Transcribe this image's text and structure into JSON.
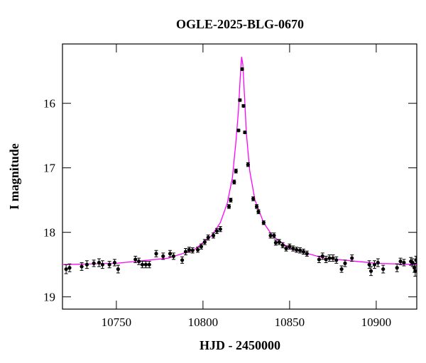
{
  "chart_data": {
    "type": "scatter",
    "title": "OGLE-2025-BLG-0670",
    "x_label": "HJD - 2450000",
    "y_label": "I magnitude",
    "xlim": [
      10718.9,
      10923.4
    ],
    "ylim": [
      19.19,
      15.08
    ],
    "xticks": [
      10750,
      10800,
      10850,
      10900
    ],
    "yticks": [
      16,
      17,
      18,
      19
    ],
    "series": [
      {
        "type": "scatter",
        "color": "#000000",
        "x": [
          10721,
          10723,
          10730,
          10733,
          10737,
          10740,
          10742,
          10746,
          10749,
          10751,
          10761,
          10763,
          10765,
          10767,
          10769,
          10773,
          10777,
          10781,
          10783,
          10788,
          10790,
          10792,
          10794,
          10797,
          10799,
          10801,
          10803,
          10806,
          10808,
          10810,
          10815,
          10816,
          10818,
          10819,
          10820.5,
          10821.3,
          10822.6,
          10823.4,
          10824.2,
          10826,
          10829,
          10831,
          10832,
          10835,
          10839,
          10841,
          10842,
          10844,
          10846,
          10848,
          10850,
          10852,
          10854,
          10856,
          10858,
          10860,
          10867,
          10869,
          10871,
          10873,
          10875,
          10877,
          10880,
          10882,
          10886,
          10896,
          10897,
          10899,
          10901,
          10904,
          10912,
          10914,
          10916,
          10920,
          10921,
          10922,
          10922.5,
          10923
        ],
        "values": [
          18.57,
          18.55,
          18.53,
          18.5,
          18.48,
          18.47,
          18.5,
          18.5,
          18.47,
          18.57,
          18.42,
          18.45,
          18.5,
          18.5,
          18.5,
          18.33,
          18.37,
          18.33,
          18.37,
          18.43,
          18.3,
          18.27,
          18.28,
          18.27,
          18.22,
          18.15,
          18.08,
          18.05,
          17.98,
          17.95,
          17.6,
          17.5,
          17.22,
          17.05,
          16.42,
          15.95,
          15.47,
          16.04,
          16.45,
          16.95,
          17.48,
          17.6,
          17.68,
          17.85,
          18.05,
          18.05,
          18.16,
          18.15,
          18.2,
          18.25,
          18.22,
          18.25,
          18.27,
          18.28,
          18.3,
          18.33,
          18.42,
          18.37,
          18.42,
          18.4,
          18.4,
          18.43,
          18.57,
          18.48,
          18.4,
          18.5,
          18.6,
          18.5,
          18.47,
          18.57,
          18.55,
          18.45,
          18.47,
          18.45,
          18.47,
          18.55,
          18.6,
          18.43
        ],
        "errors": [
          0.07,
          0.06,
          0.06,
          0.06,
          0.05,
          0.06,
          0.06,
          0.05,
          0.05,
          0.06,
          0.05,
          0.05,
          0.05,
          0.05,
          0.05,
          0.05,
          0.05,
          0.05,
          0.05,
          0.05,
          0.05,
          0.04,
          0.04,
          0.04,
          0.04,
          0.04,
          0.04,
          0.04,
          0.04,
          0.04,
          0.03,
          0.03,
          0.03,
          0.03,
          0.02,
          0.02,
          0.02,
          0.02,
          0.02,
          0.03,
          0.03,
          0.03,
          0.03,
          0.03,
          0.04,
          0.04,
          0.04,
          0.04,
          0.04,
          0.04,
          0.04,
          0.04,
          0.04,
          0.04,
          0.04,
          0.04,
          0.05,
          0.05,
          0.05,
          0.05,
          0.05,
          0.05,
          0.05,
          0.05,
          0.05,
          0.06,
          0.07,
          0.06,
          0.06,
          0.06,
          0.06,
          0.05,
          0.05,
          0.06,
          0.06,
          0.07,
          0.08,
          0.06
        ]
      },
      {
        "type": "line",
        "color": "#ff00ff",
        "x": [
          10718.9,
          10750,
          10780,
          10795,
          10805,
          10810,
          10814,
          10817,
          10819,
          10820.5,
          10821.5,
          10822.3,
          10823,
          10824,
          10825,
          10827,
          10830,
          10835,
          10840,
          10850,
          10870,
          10900,
          10923.4
        ],
        "values": [
          18.5,
          18.48,
          18.4,
          18.27,
          18.05,
          17.85,
          17.55,
          17.15,
          16.6,
          16.1,
          15.6,
          15.28,
          15.4,
          15.9,
          16.45,
          17.05,
          17.5,
          17.85,
          18.05,
          18.25,
          18.4,
          18.48,
          18.5
        ]
      }
    ]
  }
}
